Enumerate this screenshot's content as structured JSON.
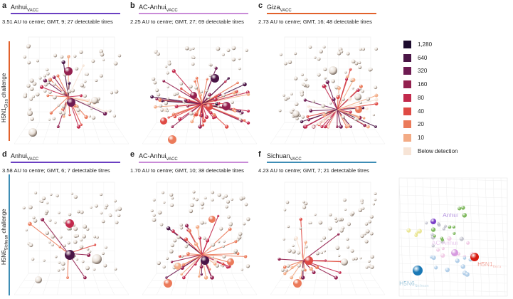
{
  "row_labels": {
    "h5n1": {
      "main": "H5N1",
      "sub": "Giza",
      "suffix": " challenge",
      "color": "#e2612b"
    },
    "h5n6": {
      "main": "H5N6",
      "sub": "Sichuan",
      "suffix": " challenge",
      "color": "#3d8db5"
    }
  },
  "panels": [
    {
      "letter": "a",
      "title_main": "Anhui",
      "title_sub": "VACC",
      "line_color": "#6b3fc2",
      "stat": "3.51 AU to centre; GMT, 9; 27 detectable titres"
    },
    {
      "letter": "b",
      "title_main": "AC-Anhui",
      "title_sub": "VACC",
      "line_color": "#c98bd8",
      "stat": "2.25 AU to centre; GMT, 27; 69 detectable titres"
    },
    {
      "letter": "c",
      "title_main": "Giza",
      "title_sub": "VACC",
      "line_color": "#e2612b",
      "stat": "2.73 AU to centre; GMT, 16; 48 detectable titres"
    },
    {
      "letter": "d",
      "title_main": "Anhui",
      "title_sub": "VACC",
      "line_color": "#6b3fc2",
      "stat": "3.58 AU to centre; GMT, 6; 7 detectable titres"
    },
    {
      "letter": "e",
      "title_main": "AC-Anhui",
      "title_sub": "VACC",
      "line_color": "#c98bd8",
      "stat": "1.70 AU to centre; GMT, 10; 38 detectable titres"
    },
    {
      "letter": "f",
      "title_main": "Sichuan",
      "title_sub": "VACC",
      "line_color": "#3d8db5",
      "stat": "4.23 AU to centre; GMT, 7; 21 detectable titres"
    }
  ],
  "legend": [
    {
      "label": "1,280",
      "color": "#1d0b2e"
    },
    {
      "label": "640",
      "color": "#4a1546"
    },
    {
      "label": "320",
      "color": "#6e1b52"
    },
    {
      "label": "160",
      "color": "#93204f"
    },
    {
      "label": "80",
      "color": "#c2294c"
    },
    {
      "label": "40",
      "color": "#df4a44"
    },
    {
      "label": "20",
      "color": "#eb7a5a"
    },
    {
      "label": "10",
      "color": "#f3ab85"
    },
    {
      "label": "Below detection",
      "color": "#f7e4d6"
    }
  ],
  "overview_labels": [
    {
      "text": "Anhui",
      "color": "#7b3fc7"
    },
    {
      "text": "AC-Anhui",
      "color": "#d79be0"
    },
    {
      "text": "H5N1",
      "sub": "Giza",
      "color": "#e2412b"
    },
    {
      "text": "H5N6",
      "sub": "Sichuan",
      "color": "#3d8db5"
    }
  ],
  "chart_data": {
    "type": "scatter",
    "description_note": "",
    "legend_title": "",
    "titre_levels": [
      "1,280",
      "640",
      "320",
      "160",
      "80",
      "40",
      "20",
      "10",
      "Below detection"
    ],
    "panels": [
      {
        "panel": "a",
        "vaccine": "Anhui",
        "challenge": "H5N1 Giza",
        "au_to_centre": 3.51,
        "gmt": 9,
        "detectable_titres": 27
      },
      {
        "panel": "b",
        "vaccine": "AC-Anhui",
        "challenge": "H5N1 Giza",
        "au_to_centre": 2.25,
        "gmt": 27,
        "detectable_titres": 69
      },
      {
        "panel": "c",
        "vaccine": "Giza",
        "challenge": "H5N1 Giza",
        "au_to_centre": 2.73,
        "gmt": 16,
        "detectable_titres": 48
      },
      {
        "panel": "d",
        "vaccine": "Anhui",
        "challenge": "H5N6 Sichuan",
        "au_to_centre": 3.58,
        "gmt": 6,
        "detectable_titres": 7
      },
      {
        "panel": "e",
        "vaccine": "AC-Anhui",
        "challenge": "H5N6 Sichuan",
        "au_to_centre": 1.7,
        "gmt": 10,
        "detectable_titres": 38
      },
      {
        "panel": "f",
        "vaccine": "Sichuan",
        "challenge": "H5N6 Sichuan",
        "au_to_centre": 4.23,
        "gmt": 7,
        "detectable_titres": 21
      }
    ]
  }
}
